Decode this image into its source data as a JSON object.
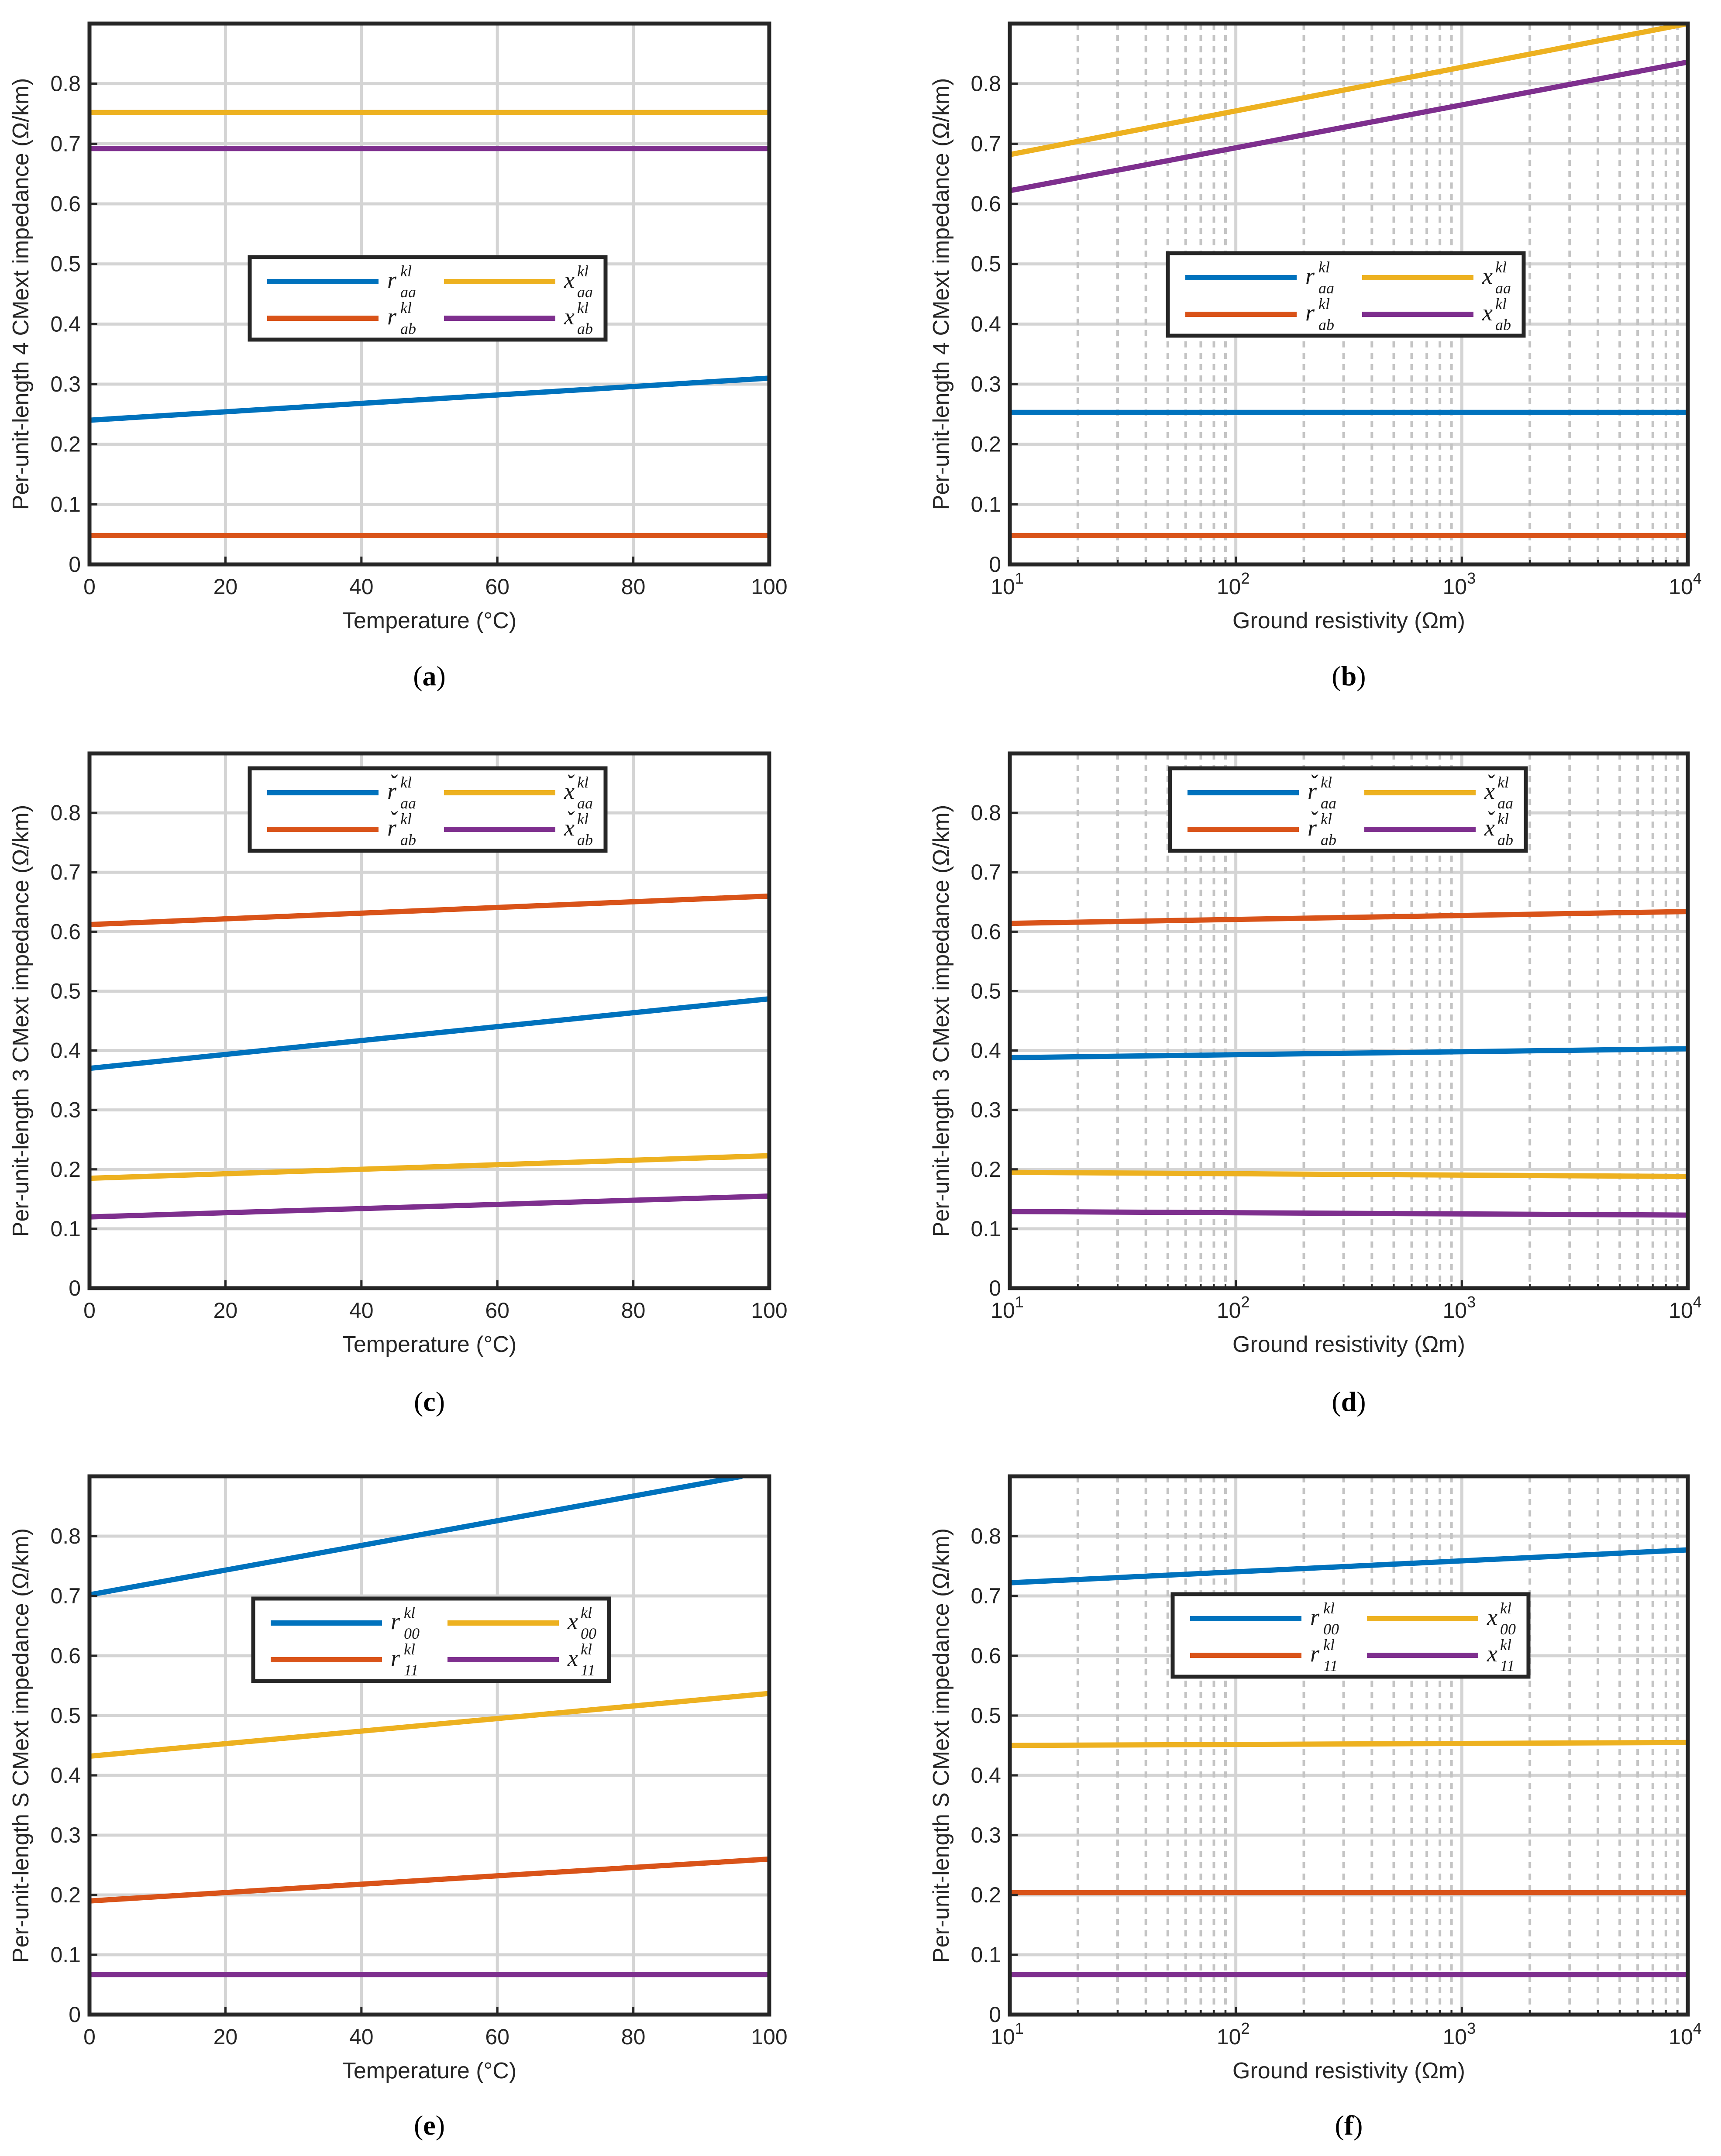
{
  "chart_data": [
    {
      "type": "line",
      "panel_label": "a",
      "xlabel": "Temperature  (°C)",
      "ylabel": "Per-unit-length 4 CMext impedance (Ω/km)",
      "xscale": "linear",
      "xlim": [
        0,
        100
      ],
      "ylim": [
        0,
        0.9
      ],
      "xticks": [
        0,
        20,
        40,
        60,
        80,
        100
      ],
      "yticks": [
        0,
        0.1,
        0.2,
        0.3,
        0.4,
        0.5,
        0.6,
        0.7,
        0.8
      ],
      "grid": true,
      "legend": {
        "placement": "center-left",
        "columns": 2
      },
      "series": [
        {
          "name": "r_aa^kl",
          "sym": "r",
          "accent": "",
          "sub": "aa",
          "color": "#0072BD",
          "x": [
            0,
            100
          ],
          "y": [
            0.24,
            0.31
          ]
        },
        {
          "name": "r_ab^kl",
          "sym": "r",
          "accent": "",
          "sub": "ab",
          "color": "#D95319",
          "x": [
            0,
            100
          ],
          "y": [
            0.048,
            0.048
          ]
        },
        {
          "name": "x_aa^kl",
          "sym": "x",
          "accent": "",
          "sub": "aa",
          "color": "#EDB120",
          "x": [
            0,
            100
          ],
          "y": [
            0.752,
            0.752
          ]
        },
        {
          "name": "x_ab^kl",
          "sym": "x",
          "accent": "",
          "sub": "ab",
          "color": "#7E2F8E",
          "x": [
            0,
            100
          ],
          "y": [
            0.692,
            0.692
          ]
        }
      ]
    },
    {
      "type": "line",
      "panel_label": "b",
      "xlabel": "Ground resistivity (Ωm)",
      "ylabel": "Per-unit-length 4 CMext impedance (Ω/km)",
      "xscale": "log",
      "xlim": [
        10,
        10000
      ],
      "ylim": [
        0,
        0.9
      ],
      "xticks": [
        10,
        100,
        1000,
        10000
      ],
      "yticks": [
        0,
        0.1,
        0.2,
        0.3,
        0.4,
        0.5,
        0.6,
        0.7,
        0.8
      ],
      "grid": true,
      "legend": {
        "placement": "center",
        "columns": 2
      },
      "series": [
        {
          "name": "r_aa^kl",
          "sym": "r",
          "accent": "",
          "sub": "aa",
          "color": "#0072BD",
          "x": [
            10,
            10000
          ],
          "y": [
            0.253,
            0.253
          ]
        },
        {
          "name": "r_ab^kl",
          "sym": "r",
          "accent": "",
          "sub": "ab",
          "color": "#D95319",
          "x": [
            10,
            10000
          ],
          "y": [
            0.048,
            0.048
          ]
        },
        {
          "name": "x_aa^kl",
          "sym": "x",
          "accent": "",
          "sub": "aa",
          "color": "#EDB120",
          "x": [
            10,
            10000
          ],
          "y": [
            0.682,
            0.9
          ]
        },
        {
          "name": "x_ab^kl",
          "sym": "x",
          "accent": "",
          "sub": "ab",
          "color": "#7E2F8E",
          "x": [
            10,
            10000
          ],
          "y": [
            0.622,
            0.836
          ]
        }
      ]
    },
    {
      "type": "line",
      "panel_label": "c",
      "xlabel": "Temperature (°C)",
      "ylabel": "Per-unit-length 3 CMext impedance (Ω/km)",
      "xscale": "linear",
      "xlim": [
        0,
        100
      ],
      "ylim": [
        0,
        0.9
      ],
      "xticks": [
        0,
        20,
        40,
        60,
        80,
        100
      ],
      "yticks": [
        0,
        0.1,
        0.2,
        0.3,
        0.4,
        0.5,
        0.6,
        0.7,
        0.8
      ],
      "grid": true,
      "legend": {
        "placement": "top-left",
        "columns": 2
      },
      "series": [
        {
          "name": "ř_aa^kl",
          "sym": "r",
          "accent": "ˇ",
          "sub": "aa",
          "color": "#0072BD",
          "x": [
            0,
            100
          ],
          "y": [
            0.37,
            0.487
          ]
        },
        {
          "name": "ř_ab^kl",
          "sym": "r",
          "accent": "ˇ",
          "sub": "ab",
          "color": "#D95319",
          "x": [
            0,
            100
          ],
          "y": [
            0.612,
            0.66
          ]
        },
        {
          "name": "x̌_aa^kl",
          "sym": "x",
          "accent": "ˇ",
          "sub": "aa",
          "color": "#EDB120",
          "x": [
            0,
            100
          ],
          "y": [
            0.185,
            0.223
          ]
        },
        {
          "name": "x̌_ab^kl",
          "sym": "x",
          "accent": "ˇ",
          "sub": "ab",
          "color": "#7E2F8E",
          "x": [
            0,
            100
          ],
          "y": [
            0.12,
            0.155
          ]
        }
      ]
    },
    {
      "type": "line",
      "panel_label": "d",
      "xlabel": "Ground resistivity (Ωm)",
      "ylabel": "Per-unit-length 3 CMext impedance (Ω/km)",
      "xscale": "log",
      "xlim": [
        10,
        10000
      ],
      "ylim": [
        0,
        0.9
      ],
      "xticks": [
        10,
        100,
        1000,
        10000
      ],
      "yticks": [
        0,
        0.1,
        0.2,
        0.3,
        0.4,
        0.5,
        0.6,
        0.7,
        0.8
      ],
      "grid": true,
      "legend": {
        "placement": "top-center",
        "columns": 2
      },
      "series": [
        {
          "name": "ř_aa^kl",
          "sym": "r",
          "accent": "ˇ",
          "sub": "aa",
          "color": "#0072BD",
          "x": [
            10,
            10000
          ],
          "y": [
            0.388,
            0.403
          ]
        },
        {
          "name": "ř_ab^kl",
          "sym": "r",
          "accent": "ˇ",
          "sub": "ab",
          "color": "#D95319",
          "x": [
            10,
            10000
          ],
          "y": [
            0.614,
            0.634
          ]
        },
        {
          "name": "x̌_aa^kl",
          "sym": "x",
          "accent": "ˇ",
          "sub": "aa",
          "color": "#EDB120",
          "x": [
            10,
            10000
          ],
          "y": [
            0.195,
            0.188
          ]
        },
        {
          "name": "x̌_ab^kl",
          "sym": "x",
          "accent": "ˇ",
          "sub": "ab",
          "color": "#7E2F8E",
          "x": [
            10,
            10000
          ],
          "y": [
            0.129,
            0.123
          ]
        }
      ]
    },
    {
      "type": "line",
      "panel_label": "e",
      "xlabel": "Temperature (°C)",
      "ylabel": "Per-unit-length S CMext impedance (Ω/km)",
      "xscale": "linear",
      "xlim": [
        0,
        100
      ],
      "ylim": [
        0,
        0.9
      ],
      "xticks": [
        0,
        20,
        40,
        60,
        80,
        100
      ],
      "yticks": [
        0,
        0.1,
        0.2,
        0.3,
        0.4,
        0.5,
        0.6,
        0.7,
        0.8
      ],
      "grid": true,
      "legend": {
        "placement": "center",
        "columns": 2
      },
      "series": [
        {
          "name": "r_00^kl",
          "sym": "r",
          "accent": "",
          "sub": "00",
          "color": "#0072BD",
          "x": [
            0,
            96
          ],
          "y": [
            0.702,
            0.9
          ]
        },
        {
          "name": "r_11^kl",
          "sym": "r",
          "accent": "",
          "sub": "11",
          "color": "#D95319",
          "x": [
            0,
            100
          ],
          "y": [
            0.19,
            0.26
          ]
        },
        {
          "name": "x_00^kl",
          "sym": "x",
          "accent": "",
          "sub": "00",
          "color": "#EDB120",
          "x": [
            0,
            100
          ],
          "y": [
            0.432,
            0.537
          ]
        },
        {
          "name": "x_11^kl",
          "sym": "x",
          "accent": "",
          "sub": "11",
          "color": "#7E2F8E",
          "x": [
            0,
            100
          ],
          "y": [
            0.067,
            0.067
          ]
        }
      ]
    },
    {
      "type": "line",
      "panel_label": "f",
      "xlabel": "Ground resistivity (Ωm)",
      "ylabel": "Per-unit-length S CMext impedance (Ω/km)",
      "xscale": "log",
      "xlim": [
        10,
        10000
      ],
      "ylim": [
        0,
        0.9
      ],
      "xticks": [
        10,
        100,
        1000,
        10000
      ],
      "yticks": [
        0,
        0.1,
        0.2,
        0.3,
        0.4,
        0.5,
        0.6,
        0.7,
        0.8
      ],
      "grid": true,
      "legend": {
        "placement": "top-center",
        "columns": 2
      },
      "series": [
        {
          "name": "r_00^kl",
          "sym": "r",
          "accent": "",
          "sub": "00",
          "color": "#0072BD",
          "x": [
            10,
            10000
          ],
          "y": [
            0.722,
            0.777
          ]
        },
        {
          "name": "r_11^kl",
          "sym": "r",
          "accent": "",
          "sub": "11",
          "color": "#D95319",
          "x": [
            10,
            10000
          ],
          "y": [
            0.204,
            0.204
          ]
        },
        {
          "name": "x_00^kl",
          "sym": "x",
          "accent": "",
          "sub": "00",
          "color": "#EDB120",
          "x": [
            10,
            10000
          ],
          "y": [
            0.45,
            0.455
          ]
        },
        {
          "name": "x_11^kl",
          "sym": "x",
          "accent": "",
          "sub": "11",
          "color": "#7E2F8E",
          "x": [
            10,
            10000
          ],
          "y": [
            0.067,
            0.067
          ]
        }
      ]
    }
  ]
}
